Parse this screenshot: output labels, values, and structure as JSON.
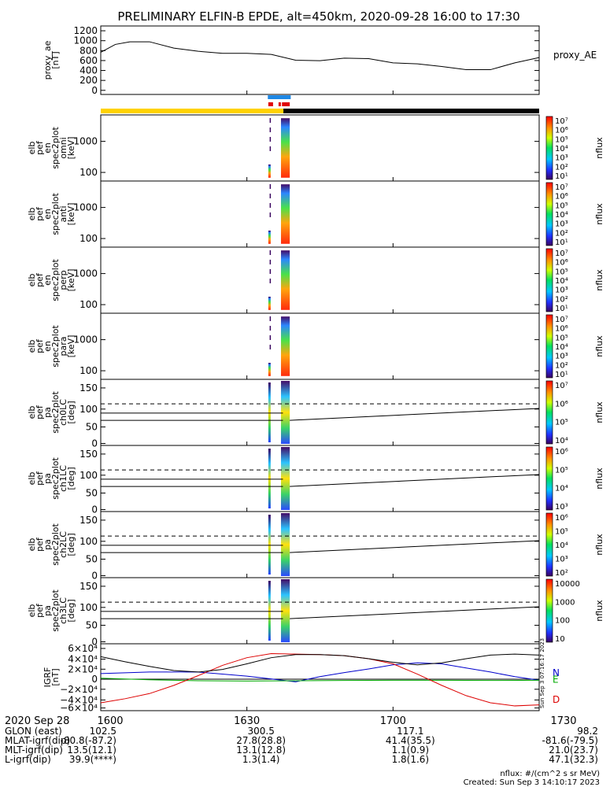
{
  "title": "PRELIMINARY ELFIN-B EPDE, alt=450km, 2020-09-28 16:00 to 17:30",
  "colors": {
    "yellow": "#ffd200",
    "black": "#000000",
    "blue": "#1e88e5",
    "red": "#e00000",
    "line_N": "#0000cc",
    "line_E": "#00aa00",
    "line_D": "#dd0000"
  },
  "chart_data": [
    {
      "type": "line",
      "panel": "proxy_ae",
      "ylabel": [
        "proxy_ae",
        "[nT]"
      ],
      "yticks": [
        "1200",
        "1000",
        "800",
        "600",
        "400",
        "200",
        "0"
      ],
      "ylim": [
        0,
        1300
      ],
      "xlim": [
        0,
        90
      ],
      "legend": "proxy_AE",
      "x": [
        0,
        3,
        6,
        10,
        15,
        20,
        25,
        30,
        35,
        40,
        45,
        50,
        55,
        60,
        65,
        70,
        75,
        80,
        85,
        90
      ],
      "y": [
        800,
        950,
        1000,
        1000,
        880,
        820,
        780,
        780,
        760,
        650,
        640,
        690,
        680,
        600,
        580,
        530,
        470,
        470,
        600,
        700
      ]
    },
    {
      "type": "heatmap",
      "panel": "omni",
      "ylabel": [
        "elb",
        "pef",
        "en",
        "spec2plot",
        "omni",
        "[keV]"
      ],
      "yticks": [
        "1000",
        "100"
      ],
      "colorbar": [
        "10⁷",
        "10⁶",
        "10⁵",
        "10⁴",
        "10³",
        "10²",
        "10¹"
      ],
      "zlabel": "nflux"
    },
    {
      "type": "heatmap",
      "panel": "anti",
      "ylabel": [
        "elb",
        "pef",
        "en",
        "spec2plot",
        "anti",
        "[keV]"
      ],
      "yticks": [
        "1000",
        "100"
      ],
      "colorbar": [
        "10⁷",
        "10⁶",
        "10⁵",
        "10⁴",
        "10³",
        "10²",
        "10¹"
      ],
      "zlabel": "nflux"
    },
    {
      "type": "heatmap",
      "panel": "perp",
      "ylabel": [
        "elb",
        "pef",
        "en",
        "spec2plot",
        "perp",
        "[keV]"
      ],
      "yticks": [
        "1000",
        "100"
      ],
      "colorbar": [
        "10⁷",
        "10⁶",
        "10⁵",
        "10⁴",
        "10³",
        "10²",
        "10¹"
      ],
      "zlabel": "nflux"
    },
    {
      "type": "heatmap",
      "panel": "para",
      "ylabel": [
        "elb",
        "pef",
        "en",
        "spec2plot",
        "para",
        "[keV]"
      ],
      "yticks": [
        "1000",
        "100"
      ],
      "colorbar": [
        "10⁷",
        "10⁶",
        "10⁵",
        "10⁴",
        "10³",
        "10²",
        "10¹"
      ],
      "zlabel": "nflux"
    },
    {
      "type": "heatmap",
      "panel": "ch0LC",
      "ylabel": [
        "elb",
        "pef",
        "pa",
        "spec2plot",
        "ch0LC",
        "[deg]"
      ],
      "yticks": [
        "150",
        "100",
        "50",
        "0"
      ],
      "colorbar": [
        "10⁷",
        "10⁶",
        "10⁵",
        "10⁴"
      ],
      "zlabel": "nflux"
    },
    {
      "type": "heatmap",
      "panel": "ch1LC",
      "ylabel": [
        "elb",
        "pef",
        "pa",
        "spec2plot",
        "ch1LC",
        "[deg]"
      ],
      "yticks": [
        "150",
        "100",
        "50",
        "0"
      ],
      "colorbar": [
        "10⁶",
        "10⁵",
        "10⁴",
        "10³"
      ],
      "zlabel": "nflux"
    },
    {
      "type": "heatmap",
      "panel": "ch2LC",
      "ylabel": [
        "elb",
        "pef",
        "pa",
        "spec2plot",
        "ch2LC",
        "[deg]"
      ],
      "yticks": [
        "150",
        "100",
        "50",
        "0"
      ],
      "colorbar": [
        "10⁶",
        "10⁵",
        "10⁴",
        "10³",
        "10²"
      ],
      "zlabel": "nflux"
    },
    {
      "type": "heatmap",
      "panel": "ch3LC",
      "ylabel": [
        "elb",
        "pef",
        "pa",
        "spec2plot",
        "ch3LC",
        "[deg]"
      ],
      "yticks": [
        "150",
        "100",
        "50",
        "0"
      ],
      "colorbar": [
        "10000",
        "1000",
        "100",
        "10"
      ],
      "zlabel": "nflux"
    },
    {
      "type": "line",
      "panel": "igrf",
      "ylabel": [
        "IGRF",
        "[nT]"
      ],
      "yticks": [
        "6×10⁴",
        "4×10⁴",
        "2×10⁴",
        "0",
        "−2×10⁴",
        "−4×10⁴",
        "−6×10⁴"
      ],
      "ylim": [
        -60000,
        60000
      ],
      "xlim": [
        0,
        90
      ],
      "series": [
        {
          "name": "N",
          "x": [
            0,
            10,
            20,
            30,
            40,
            45,
            50,
            55,
            60,
            65,
            70,
            75,
            80,
            85,
            90
          ],
          "y": [
            11000,
            14000,
            14000,
            6000,
            -5000,
            5000,
            13000,
            20000,
            28000,
            32000,
            30000,
            22000,
            14000,
            5000,
            -2000
          ]
        },
        {
          "name": "E",
          "x": [
            0,
            10,
            20,
            30,
            40,
            50,
            60,
            70,
            80,
            90
          ],
          "y": [
            2000,
            -1000,
            -3000,
            -3500,
            -3000,
            -2500,
            -2000,
            -2000,
            -2500,
            -2000
          ]
        },
        {
          "name": "D",
          "x": [
            0,
            5,
            10,
            15,
            20,
            25,
            30,
            35,
            40,
            45,
            50,
            55,
            60,
            65,
            70,
            75,
            80,
            85,
            90
          ],
          "y": [
            -46000,
            -38000,
            -28000,
            -12000,
            7000,
            27000,
            42000,
            50000,
            49000,
            48000,
            46000,
            40000,
            30000,
            10000,
            -12000,
            -32000,
            -46000,
            -52000,
            -50000
          ]
        },
        {
          "name": "",
          "x": [
            0,
            5,
            10,
            15,
            20,
            25,
            30,
            35,
            40,
            45,
            50,
            55,
            60,
            65,
            70,
            75,
            80,
            85,
            90
          ],
          "y": [
            44000,
            34000,
            25000,
            17000,
            14000,
            19000,
            30000,
            42000,
            48000,
            48000,
            46000,
            40000,
            33000,
            28000,
            32000,
            40000,
            47000,
            49000,
            47000
          ]
        }
      ]
    }
  ],
  "xaxis": {
    "ticks": [
      {
        "label": "1600",
        "min": 0
      },
      {
        "label": "1630",
        "min": 30
      },
      {
        "label": "1700",
        "min": 60
      },
      {
        "label": "1730",
        "min": 90
      }
    ]
  },
  "ephemeris": {
    "date_label": "2020 Sep 28",
    "rows": [
      {
        "name": "GLON (east)",
        "vals": [
          "102.5",
          "300.5",
          "117.1",
          "98.2"
        ]
      },
      {
        "name": "MLAT-igrf(dip)",
        "vals": [
          "-80.8(-87.2)",
          "27.8(28.8)",
          "41.4(35.5)",
          "-81.6(-79.5)"
        ]
      },
      {
        "name": "MLT-igrf(dip)",
        "vals": [
          "13.5(12.1)",
          "13.1(12.8)",
          "1.1(0.9)",
          "21.0(23.7)"
        ]
      },
      {
        "name": "L-igrf(dip)",
        "vals": [
          "39.9(****)",
          "1.3(1.4)",
          "1.8(1.6)",
          "47.1(32.3)"
        ]
      }
    ]
  },
  "footer": {
    "units": "nflux: #/(cm^2 s sr MeV)",
    "created": "Created: Sun Sep  3 14:10:17 2023"
  },
  "side_stamp": "Sun Sep  3 07:16:17 2023"
}
